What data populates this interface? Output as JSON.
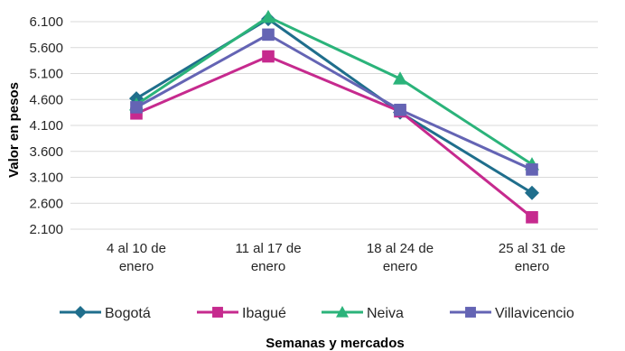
{
  "chart_data": {
    "type": "line",
    "title": "",
    "xlabel": "Semanas y mercados",
    "ylabel": "Valor en pesos",
    "categories": [
      [
        "4 al 10 de",
        "enero"
      ],
      [
        "11 al 17 de",
        "enero"
      ],
      [
        "18 al 24 de",
        "enero"
      ],
      [
        "25 al 31 de",
        "enero"
      ]
    ],
    "yticks": [
      "2.100",
      "2.600",
      "3.100",
      "3.600",
      "4.100",
      "4.600",
      "5.100",
      "5.600",
      "6.100"
    ],
    "ylim": [
      2100,
      6100
    ],
    "grid": true,
    "legend_position": "bottom",
    "series": [
      {
        "name": "Bogotá",
        "color": "#1F6E8C",
        "marker": "diamond",
        "values": [
          4620,
          6150,
          4350,
          2800
        ]
      },
      {
        "name": "Ibagué",
        "color": "#C62A8E",
        "marker": "square",
        "values": [
          4330,
          5430,
          4370,
          2330
        ]
      },
      {
        "name": "Neiva",
        "color": "#2BB37A",
        "marker": "triangle",
        "values": [
          4500,
          6190,
          5000,
          3350
        ]
      },
      {
        "name": "Villavicencio",
        "color": "#6464B4",
        "marker": "square",
        "values": [
          4450,
          5850,
          4400,
          3250
        ]
      }
    ]
  }
}
